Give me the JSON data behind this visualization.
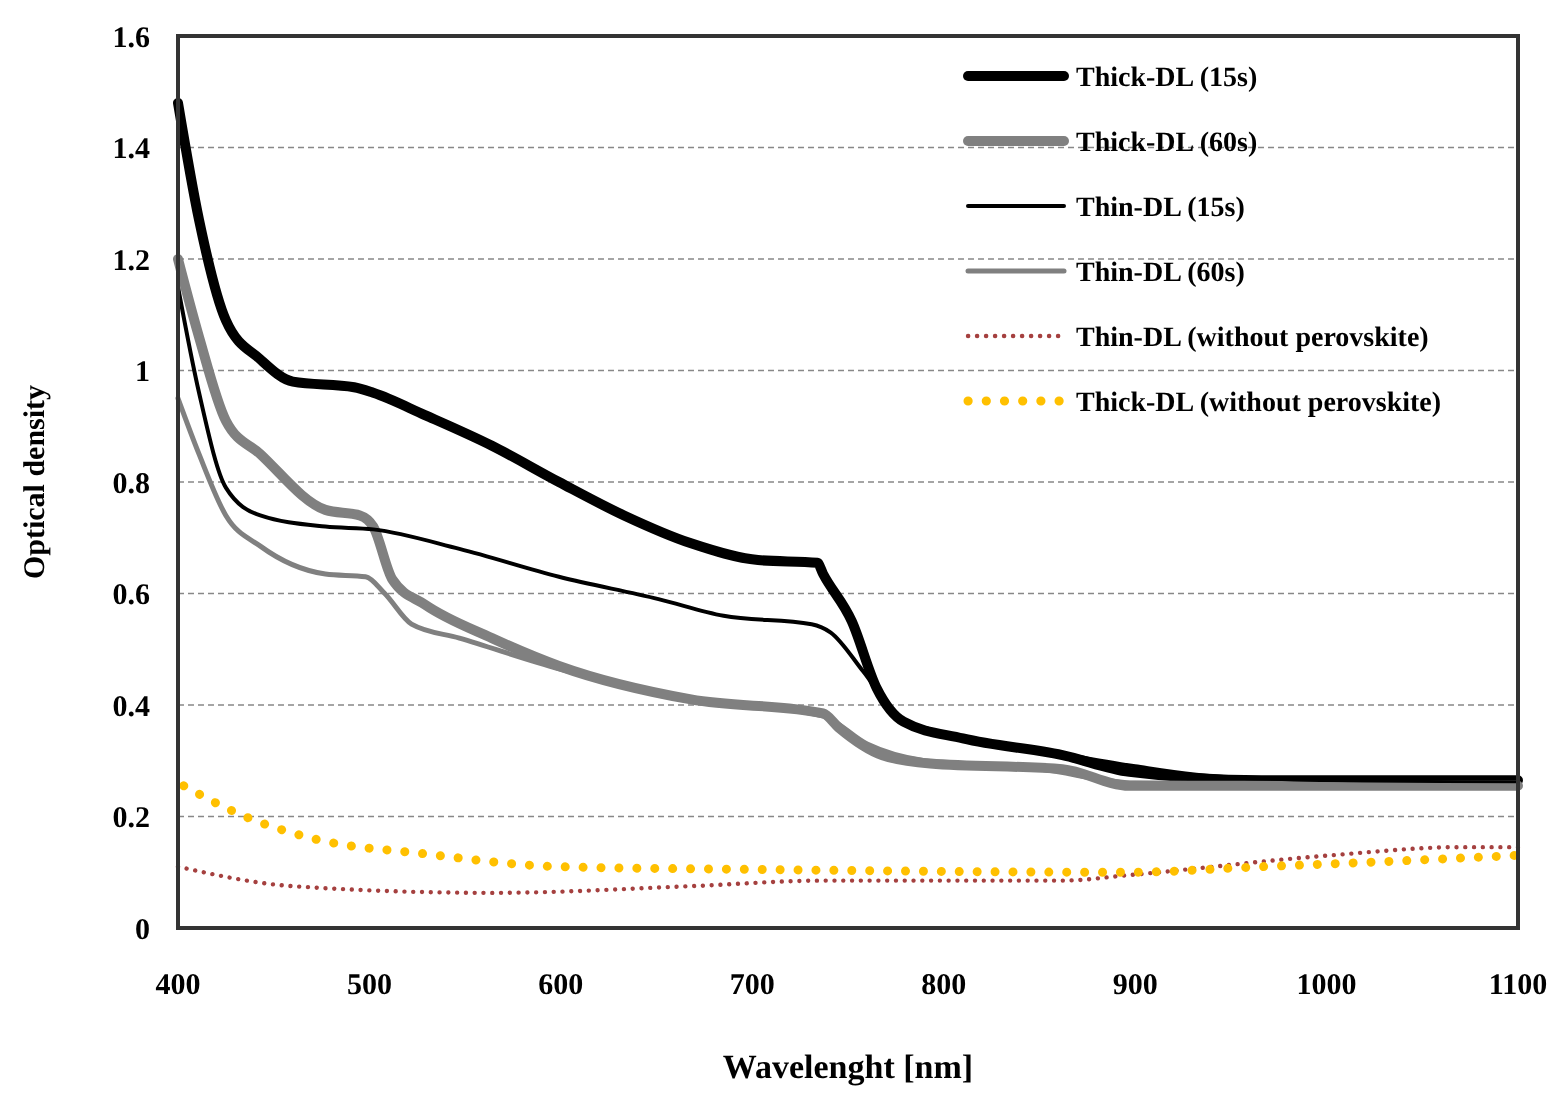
{
  "chart_data": {
    "type": "line",
    "xlabel": "Wavelenght [nm]",
    "ylabel": "Optical density",
    "xlim": [
      400,
      1100
    ],
    "xticks": [
      400,
      500,
      600,
      700,
      800,
      900,
      1000,
      1100
    ],
    "ylim": [
      0,
      1.6
    ],
    "yticks": [
      0,
      0.2,
      0.4,
      0.6,
      0.8,
      1,
      1.2,
      1.4,
      1.6
    ],
    "grid": "y",
    "legend": "top right",
    "line_style": "solid",
    "series": [
      {
        "name": "Thick-DL (15s)",
        "color": "#000000",
        "x": [
          400,
          411,
          425,
          443,
          460,
          492,
          502,
          529,
          564,
          599,
          633,
          668,
          703,
          734,
          737,
          752,
          765,
          779,
          810,
          862,
          897,
          966,
          1100
        ],
        "values": [
          1.48,
          1.27,
          1.09,
          1.02,
          0.98,
          0.97,
          0.96,
          0.92,
          0.865,
          0.8,
          0.74,
          0.69,
          0.66,
          0.655,
          0.635,
          0.55,
          0.43,
          0.37,
          0.34,
          0.31,
          0.28,
          0.265,
          0.265
        ]
      },
      {
        "name": "Thick-DL (60s)",
        "color": "#808080",
        "x": [
          400,
          411,
          425,
          443,
          477,
          495,
          502,
          512,
          529,
          564,
          599,
          668,
          737,
          745,
          768,
          793,
          862,
          897,
          1100
        ],
        "values": [
          1.2,
          1.06,
          0.91,
          0.85,
          0.75,
          0.74,
          0.72,
          0.625,
          0.58,
          0.52,
          0.47,
          0.41,
          0.385,
          0.36,
          0.31,
          0.295,
          0.285,
          0.255,
          0.255
        ]
      },
      {
        "name": "Thin-DL (15s)",
        "color": "#000000",
        "x": [
          400,
          411,
          425,
          443,
          477,
          502,
          547,
          599,
          651,
          685,
          731,
          741,
          758,
          776,
          800,
          850,
          900,
          950,
          1100
        ],
        "values": [
          1.15,
          0.96,
          0.79,
          0.74,
          0.72,
          0.715,
          0.68,
          0.63,
          0.59,
          0.56,
          0.545,
          0.53,
          0.46,
          0.38,
          0.35,
          0.32,
          0.29,
          0.27,
          0.26
        ]
      },
      {
        "name": "Thin-DL (60s)",
        "color": "#808080",
        "x": [
          400,
          411,
          425,
          443,
          477,
          498,
          508,
          522,
          547,
          599,
          668,
          737,
          760,
          790,
          850,
          900,
          1100
        ],
        "values": [
          0.95,
          0.85,
          0.74,
          0.685,
          0.635,
          0.63,
          0.6,
          0.545,
          0.52,
          0.465,
          0.41,
          0.38,
          0.33,
          0.3,
          0.285,
          0.26,
          0.255
        ]
      },
      {
        "name": "Thin-DL (without perovskite)",
        "color": "#a5403f",
        "line_style": "dotted",
        "x": [
          400,
          460,
          564,
          668,
          737,
          862,
          897,
          1001,
          1070,
          1100
        ],
        "values": [
          0.11,
          0.075,
          0.063,
          0.075,
          0.085,
          0.085,
          0.095,
          0.13,
          0.145,
          0.145
        ]
      },
      {
        "name": "Thick-DL (without perovskite)",
        "color": "#ffc000",
        "line_style": "dotted",
        "x": [
          403,
          435,
          471,
          529,
          599,
          703,
          897,
          966,
          1036,
          1098
        ],
        "values": [
          0.255,
          0.2,
          0.16,
          0.133,
          0.11,
          0.105,
          0.1,
          0.11,
          0.12,
          0.13
        ]
      }
    ]
  }
}
